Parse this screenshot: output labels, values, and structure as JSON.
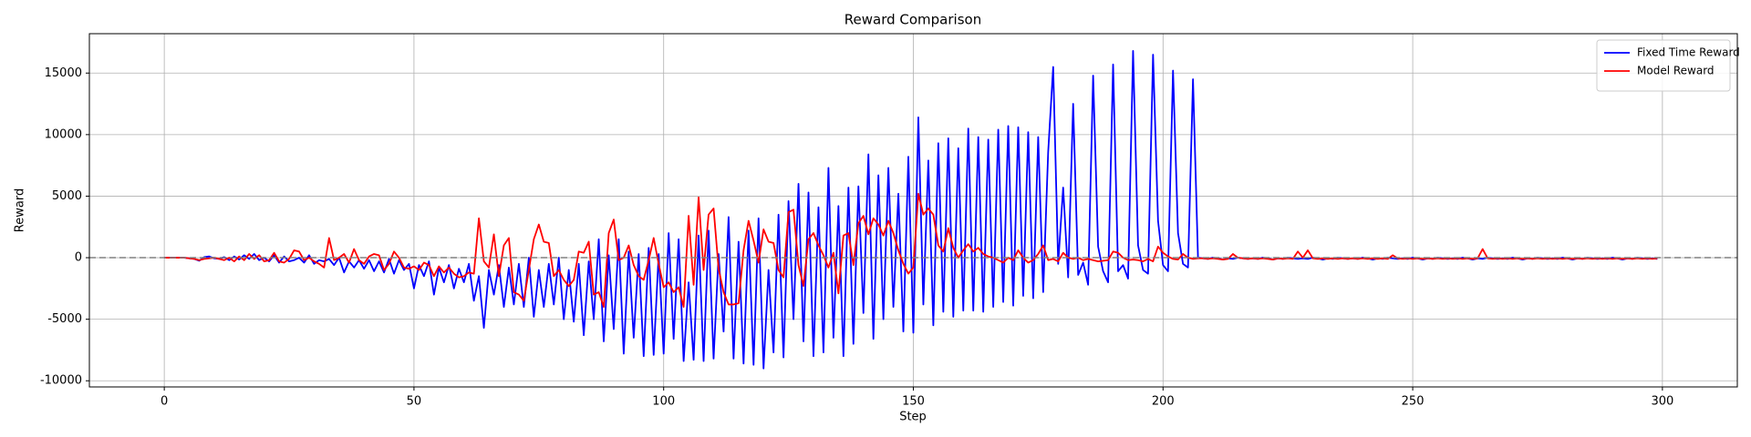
{
  "chart_data": {
    "type": "line",
    "title": "Reward Comparison",
    "x_label": "Step",
    "y_label": "Reward",
    "x": [
      0,
      1,
      2,
      3,
      4,
      5,
      6,
      7,
      8,
      9,
      10,
      11,
      12,
      13,
      14,
      15,
      16,
      17,
      18,
      19,
      20,
      21,
      22,
      23,
      24,
      25,
      26,
      27,
      28,
      29,
      30,
      31,
      32,
      33,
      34,
      35,
      36,
      37,
      38,
      39,
      40,
      41,
      42,
      43,
      44,
      45,
      46,
      47,
      48,
      49,
      50,
      51,
      52,
      53,
      54,
      55,
      56,
      57,
      58,
      59,
      60,
      61,
      62,
      63,
      64,
      65,
      66,
      67,
      68,
      69,
      70,
      71,
      72,
      73,
      74,
      75,
      76,
      77,
      78,
      79,
      80,
      81,
      82,
      83,
      84,
      85,
      86,
      87,
      88,
      89,
      90,
      91,
      92,
      93,
      94,
      95,
      96,
      97,
      98,
      99,
      100,
      101,
      102,
      103,
      104,
      105,
      106,
      107,
      108,
      109,
      110,
      111,
      112,
      113,
      114,
      115,
      116,
      117,
      118,
      119,
      120,
      121,
      122,
      123,
      124,
      125,
      126,
      127,
      128,
      129,
      130,
      131,
      132,
      133,
      134,
      135,
      136,
      137,
      138,
      139,
      140,
      141,
      142,
      143,
      144,
      145,
      146,
      147,
      148,
      149,
      150,
      151,
      152,
      153,
      154,
      155,
      156,
      157,
      158,
      159,
      160,
      161,
      162,
      163,
      164,
      165,
      166,
      167,
      168,
      169,
      170,
      171,
      172,
      173,
      174,
      175,
      176,
      177,
      178,
      179,
      180,
      181,
      182,
      183,
      184,
      185,
      186,
      187,
      188,
      189,
      190,
      191,
      192,
      193,
      194,
      195,
      196,
      197,
      198,
      199,
      200,
      201,
      202,
      203,
      204,
      205,
      206,
      207,
      208,
      209,
      210,
      211,
      212,
      213,
      214,
      215,
      216,
      217,
      218,
      219,
      220,
      221,
      222,
      223,
      224,
      225,
      226,
      227,
      228,
      229,
      230,
      231,
      232,
      233,
      234,
      235,
      236,
      237,
      238,
      239,
      240,
      241,
      242,
      243,
      244,
      245,
      246,
      247,
      248,
      249,
      250,
      251,
      252,
      253,
      254,
      255,
      256,
      257,
      258,
      259,
      260,
      261,
      262,
      263,
      264,
      265,
      266,
      267,
      268,
      269,
      270,
      271,
      272,
      273,
      274,
      275,
      276,
      277,
      278,
      279,
      280,
      281,
      282,
      283,
      284,
      285,
      286,
      287,
      288,
      289,
      290,
      291,
      292,
      293,
      294,
      295,
      296,
      297,
      298,
      299
    ],
    "series": [
      {
        "name": "Fixed Time Reward",
        "color": "#0000ff",
        "values": [
          0,
          0,
          0,
          0,
          0,
          -50,
          -100,
          -250,
          50,
          100,
          -50,
          -100,
          50,
          -200,
          100,
          -150,
          200,
          -100,
          300,
          -200,
          0,
          -300,
          200,
          -400,
          100,
          -300,
          -200,
          0,
          -400,
          200,
          -500,
          -200,
          -300,
          -100,
          -600,
          0,
          -1200,
          -300,
          -800,
          -200,
          -900,
          -200,
          -1100,
          -300,
          -1200,
          -100,
          -1300,
          -200,
          -1000,
          -500,
          -2500,
          -600,
          -1500,
          -300,
          -3000,
          -800,
          -2000,
          -600,
          -2500,
          -900,
          -2000,
          -500,
          -3500,
          -1500,
          -5700,
          -1000,
          -3000,
          -600,
          -4000,
          -800,
          -3800,
          -500,
          -4000,
          0,
          -4800,
          -1000,
          -4000,
          -500,
          -3800,
          0,
          -5000,
          -1000,
          -5200,
          -500,
          -6300,
          -300,
          -5000,
          1500,
          -6800,
          200,
          -5800,
          1500,
          -7800,
          500,
          -6500,
          300,
          -8000,
          800,
          -7900,
          300,
          -7800,
          2000,
          -6600,
          1500,
          -8400,
          -2000,
          -8300,
          1800,
          -8400,
          2200,
          -8200,
          300,
          -6000,
          3300,
          -8200,
          1300,
          -8600,
          2200,
          -8700,
          3200,
          -9000,
          -1000,
          -7700,
          3500,
          -8100,
          4600,
          -5000,
          6000,
          -6800,
          5300,
          -8000,
          4100,
          -7700,
          7300,
          -6500,
          4200,
          -8000,
          5700,
          -7000,
          5800,
          -4500,
          8400,
          -6600,
          6700,
          -5000,
          7300,
          -4000,
          5200,
          -6000,
          8200,
          -6100,
          11400,
          -3800,
          7900,
          -5500,
          9300,
          -4400,
          9700,
          -4800,
          8900,
          -4300,
          10500,
          -4300,
          9800,
          -4400,
          9600,
          -4000,
          10400,
          -3600,
          10700,
          -3900,
          10600,
          -3100,
          10200,
          -3300,
          9800,
          -2800,
          8600,
          15500,
          -500,
          5700,
          -1600,
          12500,
          -1400,
          -400,
          -2200,
          14800,
          900,
          -1100,
          -2000,
          15700,
          -1100,
          -600,
          -1700,
          16800,
          1000,
          -1000,
          -1300,
          16500,
          3000,
          -600,
          -1100,
          15200,
          2000,
          -500,
          -800,
          14500,
          0,
          -50,
          -100,
          0,
          -50,
          -150,
          -50,
          -100,
          0,
          -50,
          -100,
          -50,
          -100,
          0,
          -50,
          -150,
          -50,
          -100,
          0,
          -50,
          -100,
          -50,
          -100,
          0,
          -50,
          -150,
          -50,
          -100,
          0,
          -50,
          -100,
          -50,
          -100,
          0,
          -50,
          -150,
          -50,
          -100,
          0,
          -50,
          -100,
          -50,
          -100,
          0,
          -50,
          -150,
          -50,
          -100,
          0,
          -50,
          -100,
          -50,
          -100,
          0,
          -50,
          -150,
          -50,
          -100,
          0,
          -50,
          -100,
          -50,
          -100,
          0,
          -50,
          -150,
          -50,
          -100,
          0,
          -50,
          -100,
          -50,
          -100,
          0,
          -50,
          -150,
          -50,
          -100,
          0,
          -50,
          -100,
          -50,
          -100,
          0,
          -50,
          -150,
          -50,
          -100,
          0,
          -50,
          -100,
          -50,
          -100
        ]
      },
      {
        "name": "Model Reward",
        "color": "#ff0000",
        "values": [
          0,
          0,
          0,
          0,
          0,
          -50,
          -100,
          -200,
          -100,
          -50,
          0,
          -100,
          -200,
          0,
          -300,
          100,
          -200,
          300,
          -100,
          200,
          -300,
          -200,
          400,
          -300,
          -400,
          -100,
          600,
          500,
          -200,
          0,
          -300,
          -500,
          -800,
          1600,
          -200,
          0,
          300,
          -400,
          700,
          -200,
          -500,
          100,
          300,
          200,
          -1000,
          -500,
          500,
          0,
          -800,
          -900,
          -700,
          -1000,
          -400,
          -600,
          -1500,
          -700,
          -1200,
          -800,
          -1300,
          -1600,
          -1500,
          -1200,
          -1300,
          3200,
          -300,
          -800,
          1900,
          -1500,
          1000,
          1600,
          -2800,
          -3000,
          -3500,
          -1000,
          1500,
          2700,
          1300,
          1200,
          -1500,
          -1000,
          -1800,
          -2300,
          -1800,
          500,
          400,
          1300,
          -3000,
          -2800,
          -4000,
          2000,
          3100,
          -200,
          0,
          1000,
          -600,
          -1500,
          -1800,
          -200,
          1600,
          -500,
          -2400,
          -2000,
          -2800,
          -2400,
          -4000,
          3400,
          -2200,
          4900,
          -1000,
          3500,
          4000,
          -900,
          -2800,
          -3800,
          -3800,
          -3700,
          600,
          3000,
          1400,
          -400,
          2300,
          1300,
          1200,
          -1000,
          -1600,
          3700,
          3900,
          -600,
          -2300,
          1500,
          2000,
          1000,
          200,
          -800,
          400,
          -2900,
          1800,
          2000,
          -600,
          2800,
          3400,
          1900,
          3200,
          2700,
          1800,
          3000,
          2000,
          600,
          -500,
          -1300,
          -800,
          5200,
          3500,
          4000,
          3500,
          1000,
          500,
          2400,
          800,
          0,
          600,
          1100,
          500,
          800,
          300,
          100,
          0,
          -200,
          -400,
          0,
          -200,
          600,
          0,
          -400,
          -200,
          300,
          1000,
          -200,
          -100,
          -300,
          400,
          0,
          -100,
          0,
          -200,
          -100,
          -200,
          -300,
          -250,
          -200,
          500,
          400,
          0,
          -200,
          -150,
          -200,
          -300,
          -100,
          -300,
          900,
          400,
          100,
          -100,
          -150,
          300,
          0,
          -100,
          -50,
          -50,
          -100,
          -50,
          -100,
          -150,
          -100,
          300,
          0,
          -50,
          -100,
          -50,
          -100,
          -50,
          -100,
          -150,
          -50,
          -100,
          -50,
          -100,
          500,
          0,
          600,
          -50,
          -100,
          -50,
          -100,
          -50,
          -100,
          -50,
          -100,
          -50,
          -100,
          -50,
          -100,
          -50,
          -100,
          -50,
          -100,
          200,
          -50,
          -100,
          -50,
          -100,
          -50,
          -100,
          -50,
          -100,
          -50,
          -100,
          -50,
          -100,
          -50,
          -100,
          -50,
          -100,
          -50,
          700,
          -50,
          -100,
          -50,
          -100,
          -50,
          -100,
          -50,
          -100,
          -50,
          -100,
          -50,
          -100,
          -50,
          -100,
          -50,
          -100,
          -50,
          -100,
          -50,
          -100,
          -50,
          -100,
          -50,
          -100,
          -50,
          -100,
          -50,
          -100,
          -50,
          -100,
          -50,
          -100,
          -50,
          -100,
          -50
        ]
      }
    ],
    "xlim": [
      -15,
      315
    ],
    "ylim": [
      -10500,
      18200
    ],
    "xticks": [
      0,
      50,
      100,
      150,
      200,
      250,
      300
    ],
    "yticks": [
      -10000,
      -5000,
      0,
      5000,
      10000,
      15000
    ],
    "hline": 0,
    "grid": true,
    "legend": "upper right"
  }
}
